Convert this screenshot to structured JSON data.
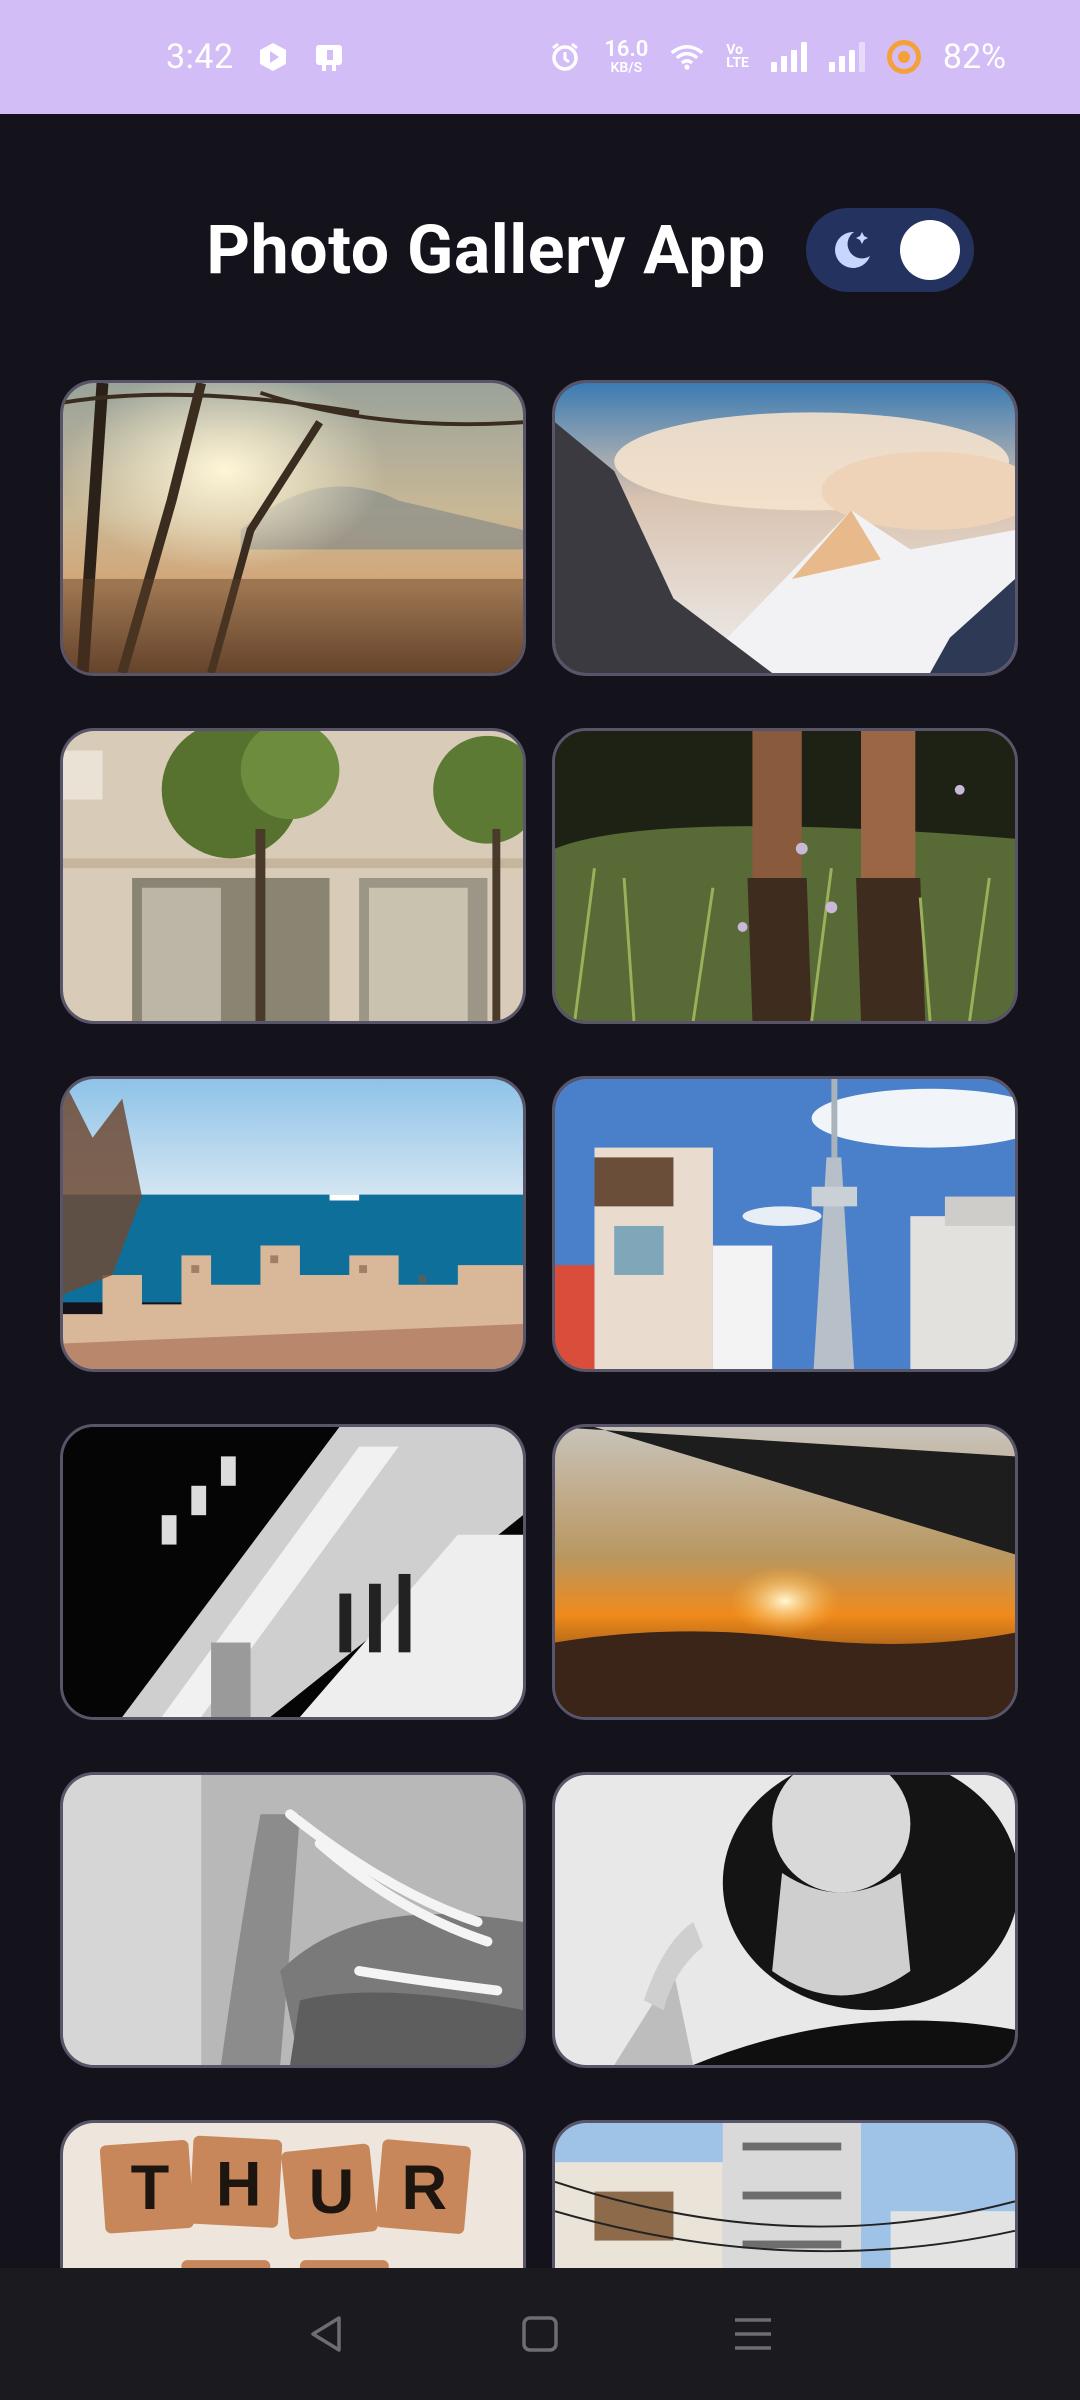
{
  "status_bar": {
    "time": "3:42",
    "net_speed_value": "16.0",
    "net_speed_unit": "KB/S",
    "volte_top": "Vo",
    "volte_bottom": "LTE",
    "battery": "82%",
    "icons": [
      "app-notification-icon",
      "notification-icon-2",
      "alarm-icon",
      "wifi-icon",
      "signal-icon",
      "signal-icon-2",
      "battery-saver-icon"
    ]
  },
  "header": {
    "title": "Photo Gallery App",
    "theme_toggle": {
      "mode": "dark",
      "on": true,
      "accent": "#23325f"
    }
  },
  "gallery": {
    "photos": [
      {
        "name": "forest-sunrise-photo"
      },
      {
        "name": "snowy-mountain-photo"
      },
      {
        "name": "building-trees-photo"
      },
      {
        "name": "grass-boots-photo"
      },
      {
        "name": "coastal-city-photo"
      },
      {
        "name": "tokyo-tower-street-photo"
      },
      {
        "name": "bw-architecture-photo"
      },
      {
        "name": "sunset-horizon-photo"
      },
      {
        "name": "bw-hand-photo"
      },
      {
        "name": "bw-portrait-photo"
      },
      {
        "name": "letter-blocks-photo"
      },
      {
        "name": "apartment-building-photo"
      }
    ],
    "letter_blocks_text": "THUR"
  },
  "nav_bar": {
    "buttons": [
      "back-button",
      "home-button",
      "recents-button"
    ]
  }
}
